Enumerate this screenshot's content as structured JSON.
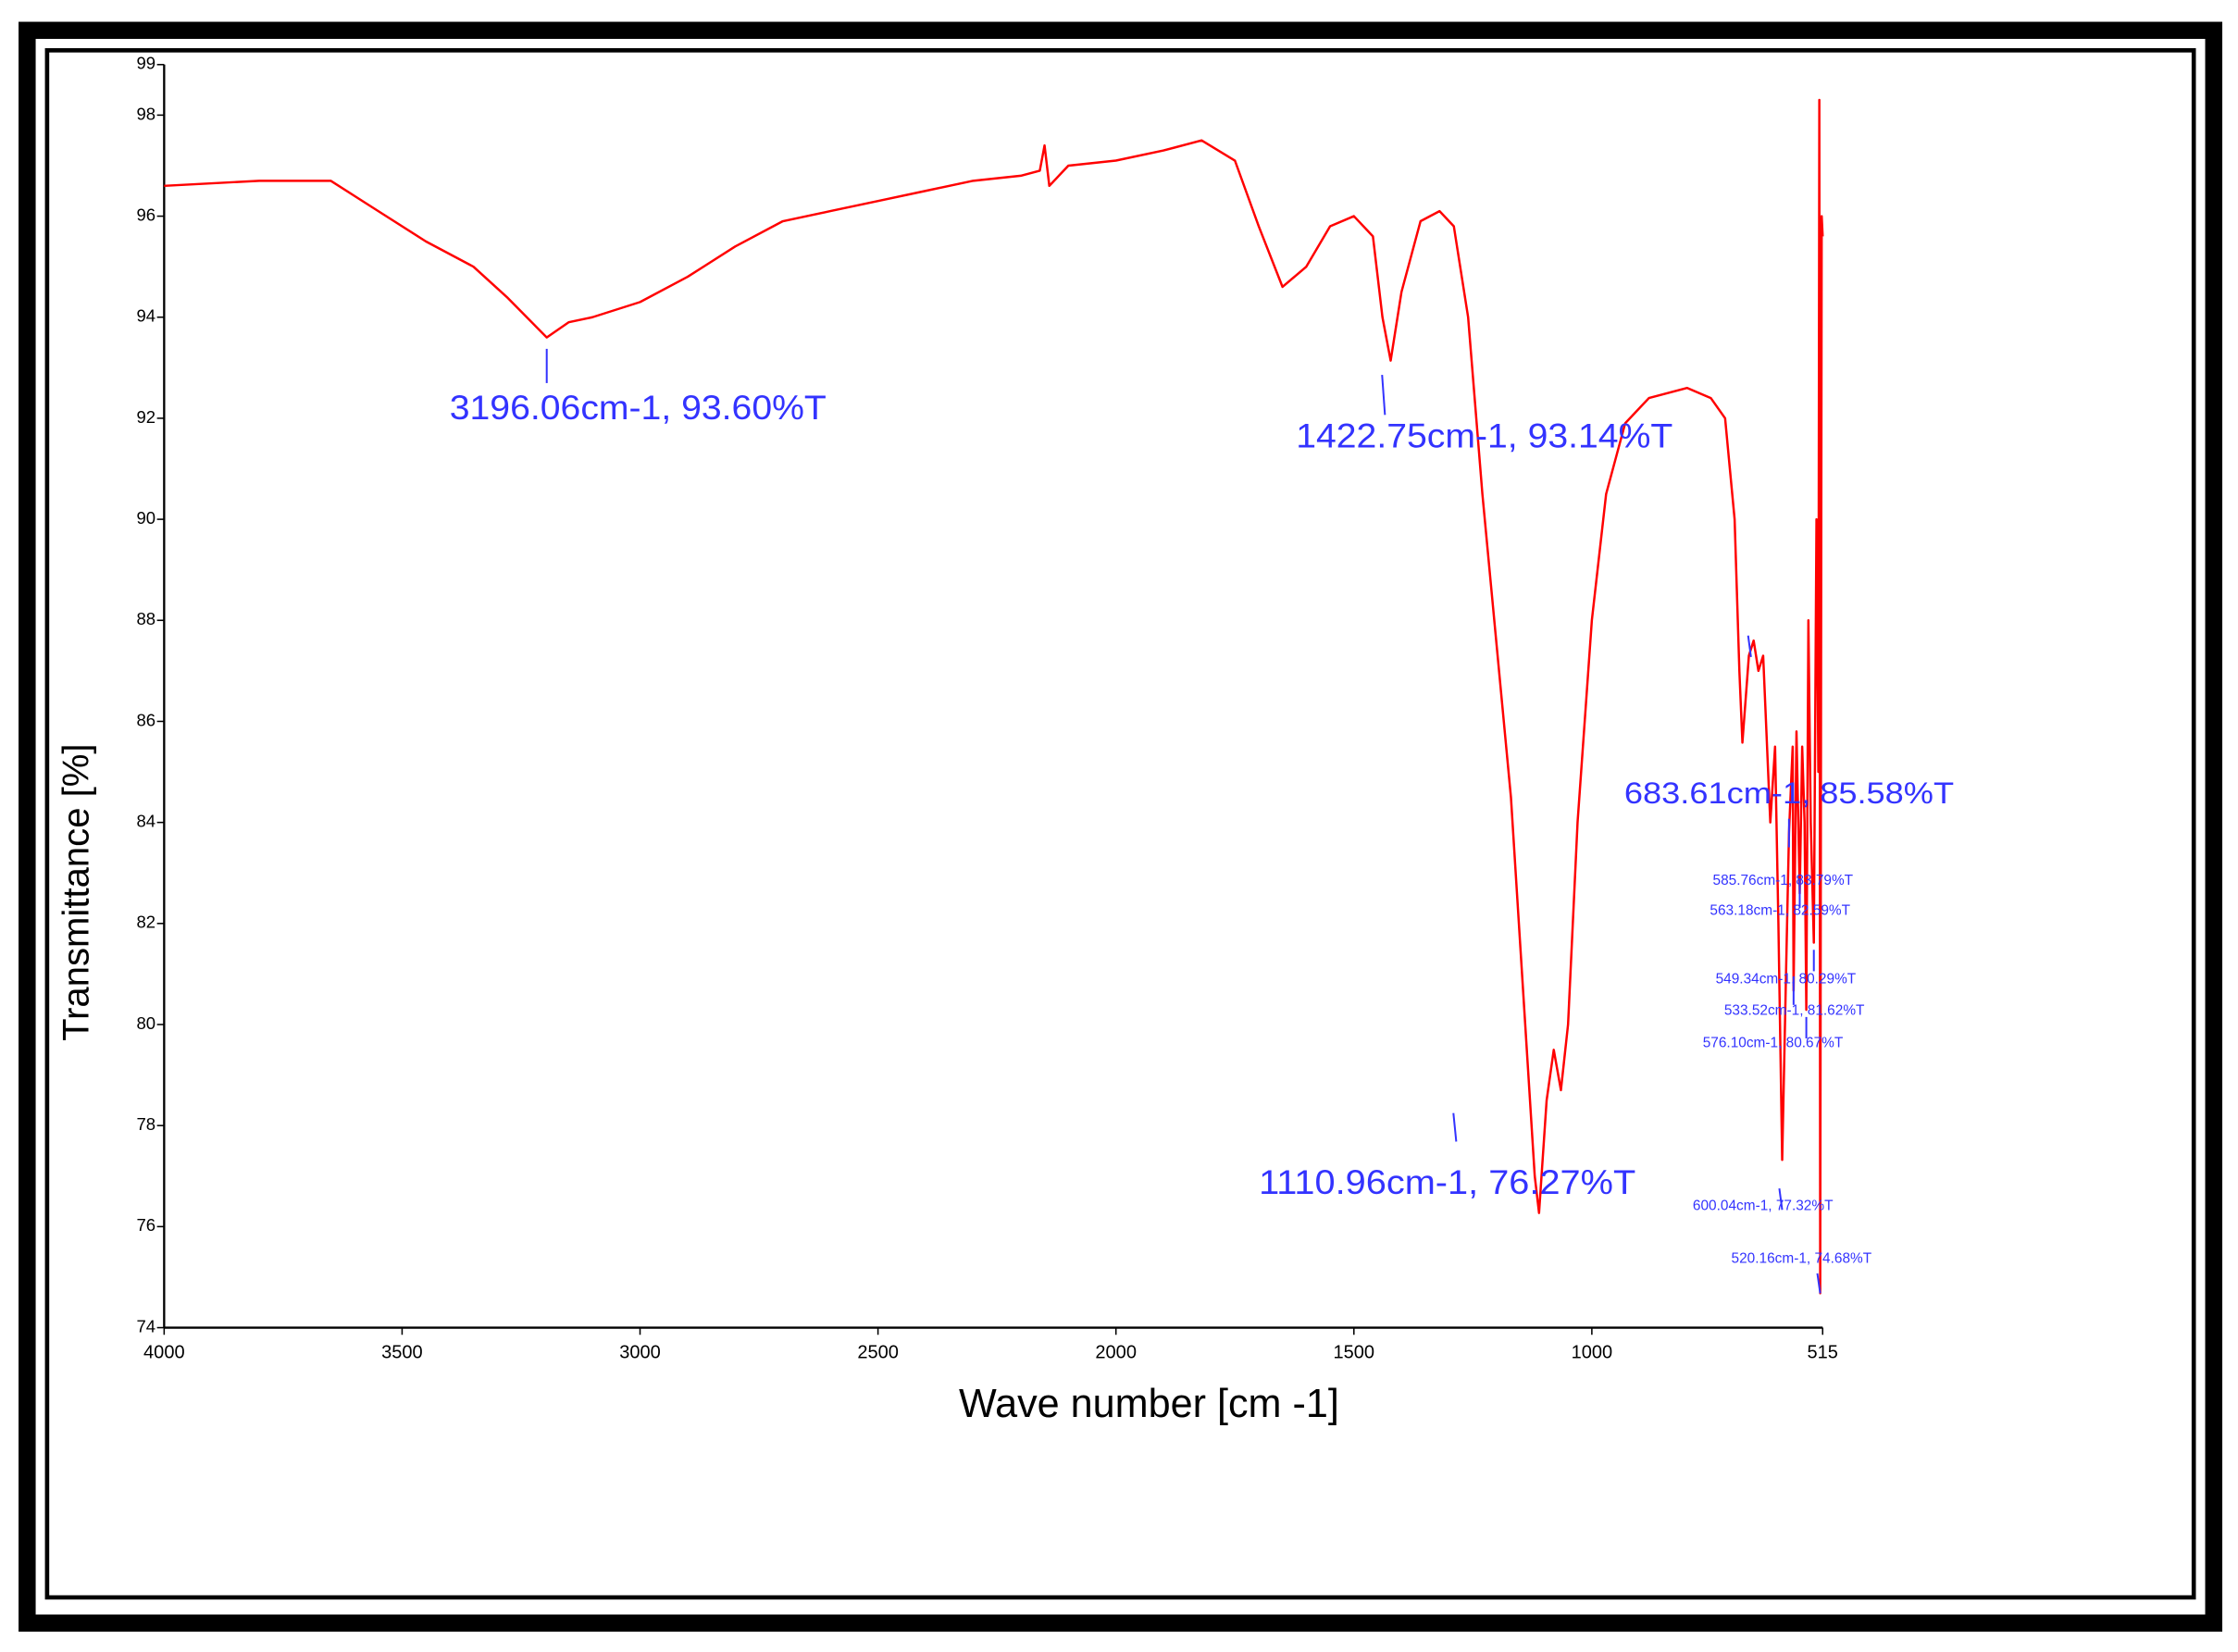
{
  "chart_data": {
    "type": "line",
    "x_label": "Wave number [cm -1]",
    "y_label": "Transmittance [%]",
    "xlim": [
      4000,
      515
    ],
    "xticks": [
      4000,
      3500,
      3000,
      2500,
      2000,
      1500,
      1000,
      515
    ],
    "ylim": [
      74,
      99
    ],
    "yticks": [
      74,
      76,
      78,
      80,
      82,
      84,
      86,
      88,
      90,
      92,
      94,
      96,
      98,
      99
    ],
    "x": [
      4000,
      3800,
      3650,
      3550,
      3450,
      3350,
      3280,
      3196.06,
      3150,
      3100,
      3000,
      2900,
      2800,
      2700,
      2600,
      2500,
      2400,
      2300,
      2200,
      2160,
      2150,
      2140,
      2100,
      2000,
      1900,
      1820,
      1750,
      1700,
      1650,
      1600,
      1550,
      1500,
      1460,
      1440,
      1422.75,
      1400,
      1360,
      1320,
      1290,
      1260,
      1230,
      1200,
      1170,
      1140,
      1120,
      1110.96,
      1095,
      1080,
      1065,
      1050,
      1030,
      1000,
      970,
      930,
      880,
      800,
      750,
      720,
      700,
      690,
      683.61,
      670,
      660,
      650,
      640,
      625,
      615,
      608,
      600.04,
      592,
      585.76,
      578,
      576.1,
      570,
      563.18,
      558,
      553,
      549.34,
      545,
      540,
      533.52,
      528,
      524,
      522,
      520.16,
      517,
      515
    ],
    "series": [
      {
        "color": "#ff0000",
        "values": [
          96.6,
          96.7,
          96.7,
          96.1,
          95.5,
          95.0,
          94.4,
          93.6,
          93.9,
          94.0,
          94.3,
          94.8,
          95.4,
          95.9,
          96.1,
          96.3,
          96.5,
          96.7,
          96.8,
          96.9,
          97.4,
          96.6,
          97.0,
          97.1,
          97.3,
          97.5,
          97.1,
          95.8,
          94.6,
          95.0,
          95.8,
          96.0,
          95.6,
          94.0,
          93.14,
          94.5,
          95.9,
          96.1,
          95.8,
          94.0,
          90.5,
          87.5,
          84.5,
          80.0,
          77.0,
          76.27,
          78.5,
          79.5,
          78.7,
          80.0,
          84.0,
          88.0,
          90.5,
          91.9,
          92.4,
          92.6,
          92.4,
          92.0,
          90.0,
          87.0,
          85.58,
          87.3,
          87.6,
          87.0,
          87.3,
          84.0,
          85.5,
          82.0,
          77.32,
          81.0,
          83.79,
          85.5,
          80.67,
          85.8,
          82.59,
          85.5,
          84.0,
          80.29,
          88.0,
          84.0,
          81.62,
          90.0,
          85.0,
          98.3,
          74.68,
          96.0,
          95.6
        ]
      }
    ],
    "annotation_color": "#3333ff",
    "annotations": [
      {
        "text": "3196.06cm-1, 93.60%T",
        "x": 3196.06,
        "y": 93.6
      },
      {
        "text": "1422.75cm-1, 93.14%T",
        "x": 1422.75,
        "y": 93.14
      },
      {
        "text": "1110.96cm-1, 76.27%T",
        "x": 1110.96,
        "y": 76.27
      },
      {
        "text": "683.61cm-1, 85.58%T",
        "x": 683.61,
        "y": 85.58
      },
      {
        "text": "585.76cm-1, 83.79%T",
        "x": 585.76,
        "y": 83.79
      },
      {
        "text": "563.18cm-1, 82.59%T",
        "x": 563.18,
        "y": 82.59
      },
      {
        "text": "549.34cm-1, 80.29%T",
        "x": 549.34,
        "y": 80.29
      },
      {
        "text": "533.52cm-1, 81.62%T",
        "x": 533.52,
        "y": 81.62
      },
      {
        "text": "576.10cm-1, 80.67%T",
        "x": 576.1,
        "y": 80.67
      },
      {
        "text": "600.04cm-1, 77.32%T",
        "x": 600.04,
        "y": 77.32
      },
      {
        "text": "520.16cm-1, 74.68%T",
        "x": 520.16,
        "y": 74.68
      }
    ]
  }
}
